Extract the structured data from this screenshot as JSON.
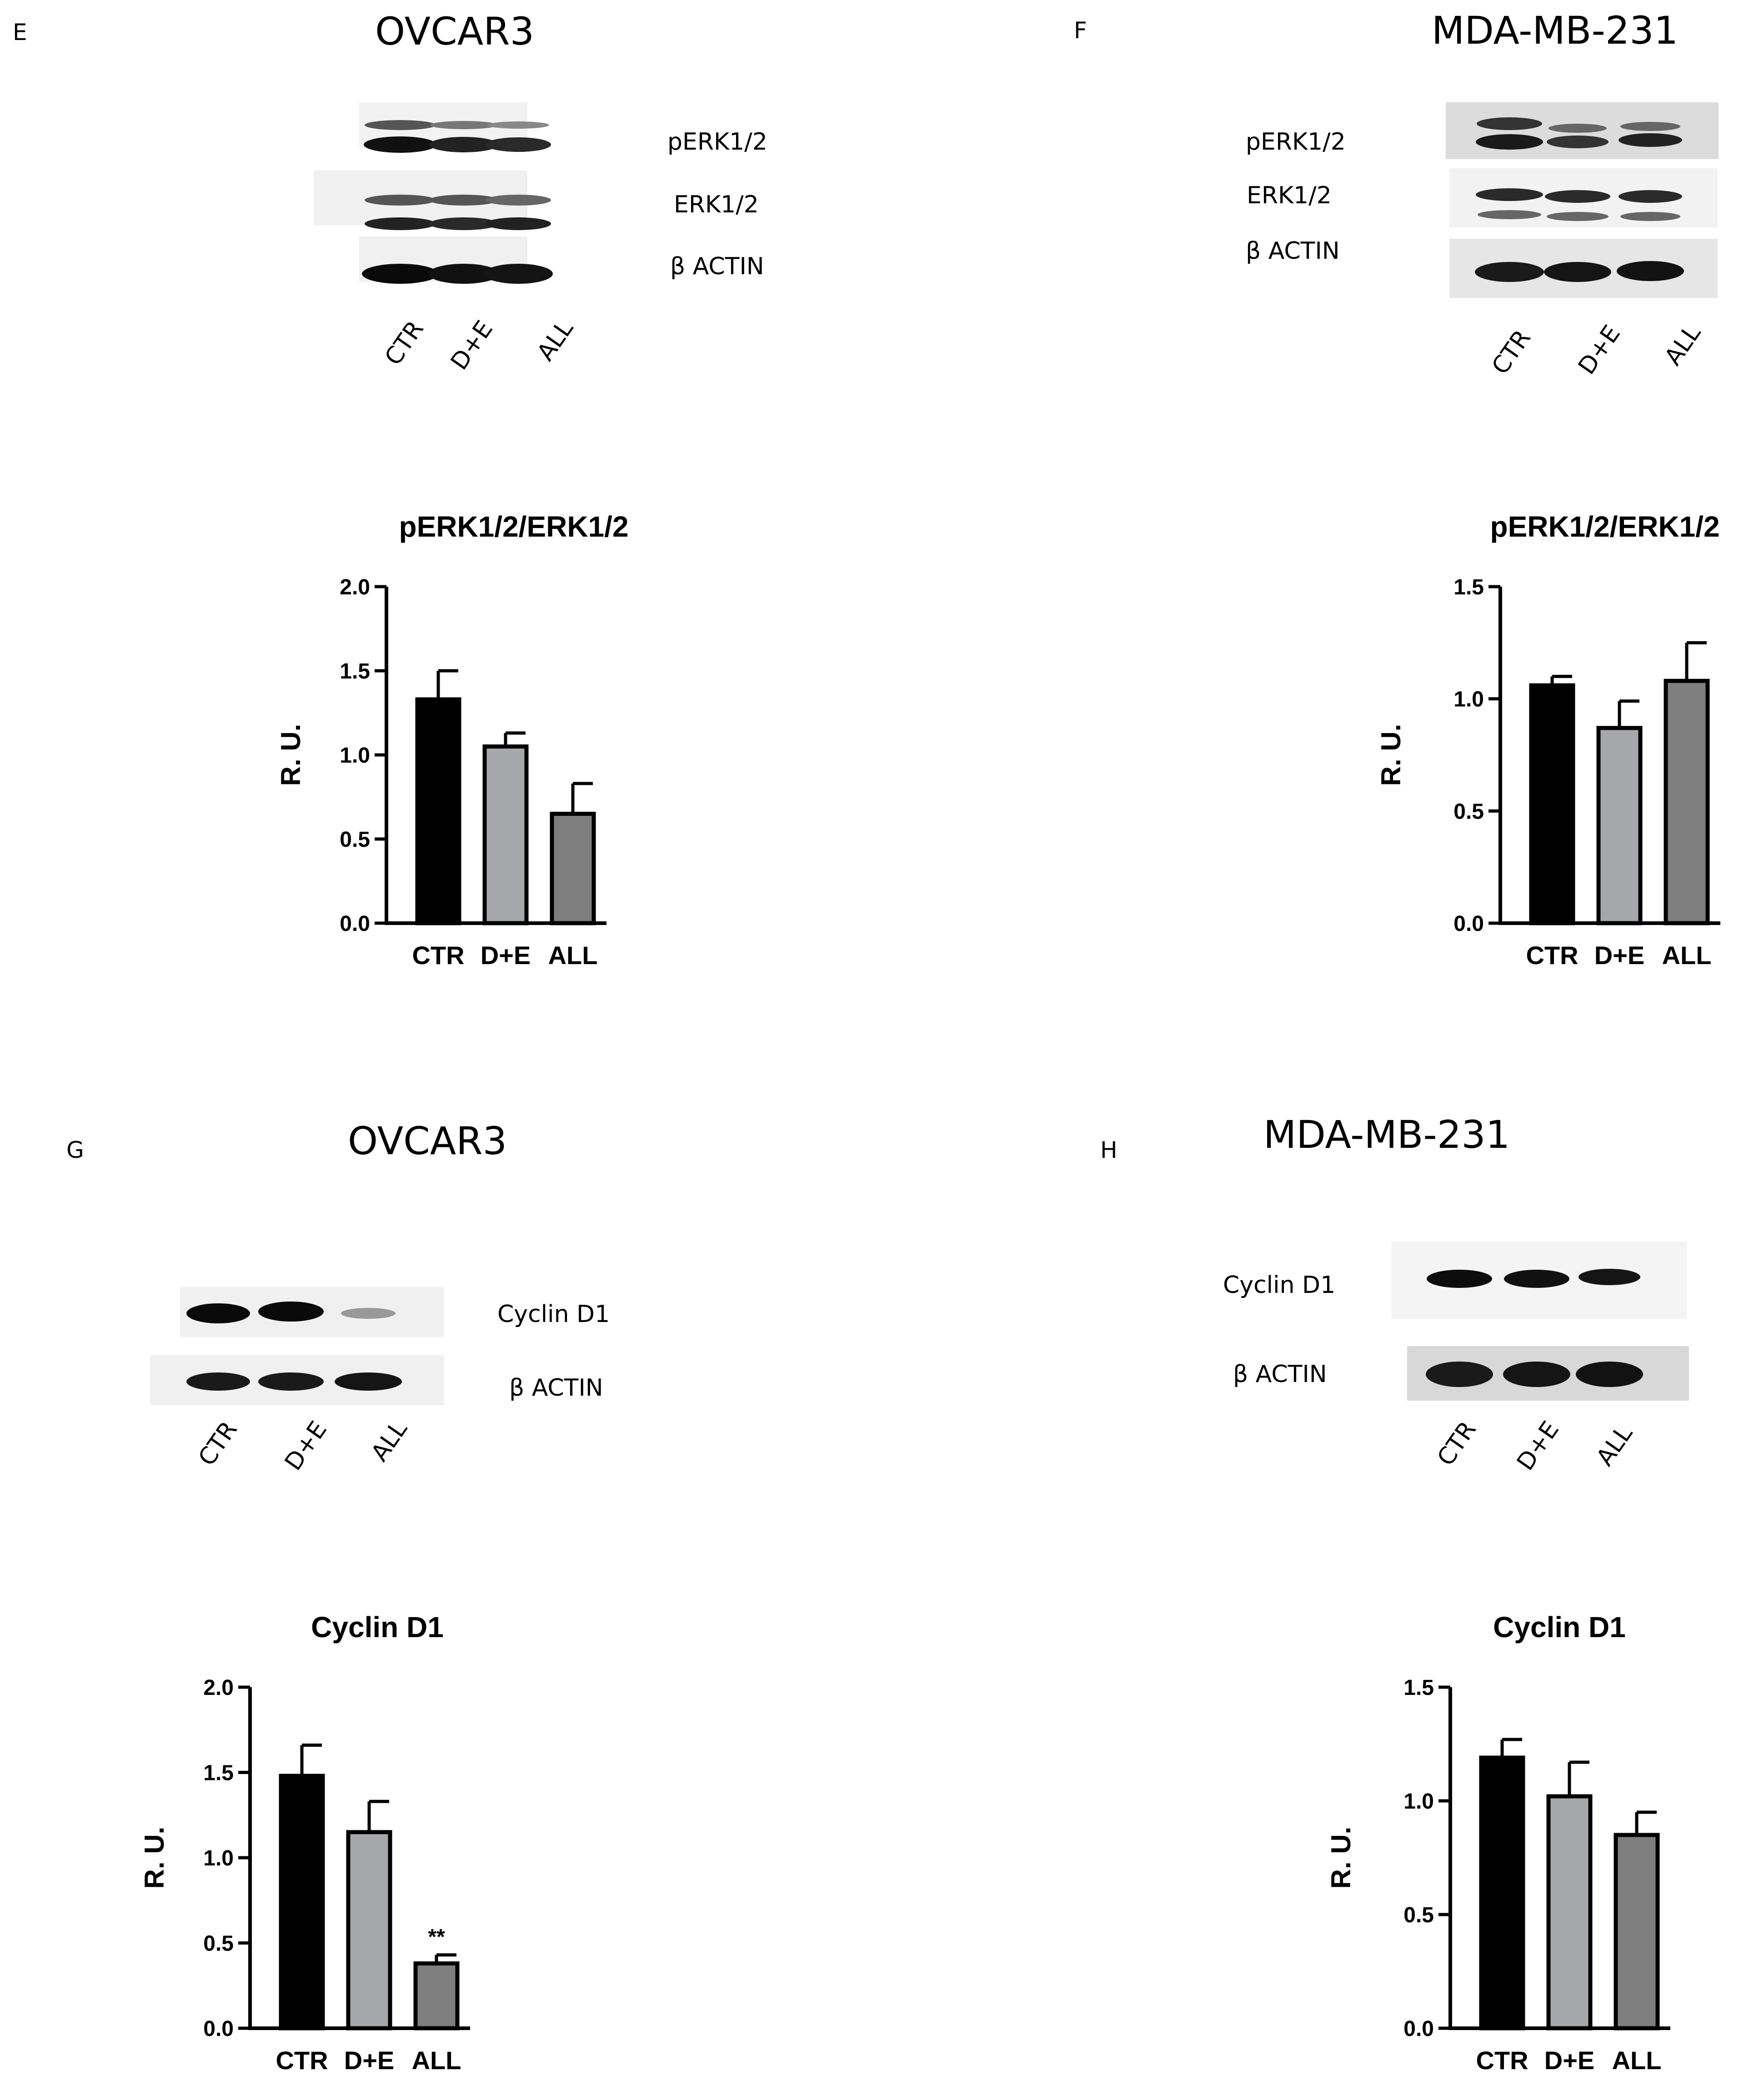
{
  "panels": {
    "E": {
      "letter": "E",
      "cell": "OVCAR3",
      "blot_labels": [
        "pERK1/2",
        "ERK1/2",
        "β ACTIN"
      ],
      "lanes": [
        "CTR",
        "D+E",
        "ALL"
      ]
    },
    "F": {
      "letter": "F",
      "cell": "MDA-MB-231",
      "blot_labels": [
        "pERK1/2",
        "ERK1/2",
        "β ACTIN"
      ],
      "lanes": [
        "CTR",
        "D+E",
        "ALL"
      ]
    },
    "G": {
      "letter": "G",
      "cell": "OVCAR3",
      "blot_labels": [
        "Cyclin D1",
        "β ACTIN"
      ],
      "lanes": [
        "CTR",
        "D+E",
        "ALL"
      ]
    },
    "H": {
      "letter": "H",
      "cell": "MDA-MB-231",
      "blot_labels": [
        "Cyclin D1",
        "β ACTIN"
      ],
      "lanes": [
        "CTR",
        "D+E",
        "ALL"
      ]
    }
  },
  "colors": {
    "CTR": "#000000",
    "D+E": "#a6a7ab",
    "ALL": "#7e7e7e"
  },
  "chart_data": [
    {
      "type": "bar",
      "title": "pERK1/2/ERK1/2",
      "ylabel": "R. U.",
      "xlabel": "",
      "categories": [
        "CTR",
        "D+E",
        "ALL"
      ],
      "values": [
        1.33,
        1.05,
        0.65
      ],
      "errors": [
        0.17,
        0.08,
        0.18
      ],
      "annotations": [
        "",
        "",
        ""
      ],
      "ylim": [
        0,
        2.0
      ],
      "yticks": [
        "0.0",
        "0.5",
        "1.0",
        "1.5",
        "2.0"
      ],
      "grid": false
    },
    {
      "type": "bar",
      "title": "pERK1/2/ERK1/2",
      "ylabel": "R. U.",
      "xlabel": "",
      "categories": [
        "CTR",
        "D+E",
        "ALL"
      ],
      "values": [
        1.06,
        0.87,
        1.08
      ],
      "errors": [
        0.04,
        0.12,
        0.17
      ],
      "annotations": [
        "",
        "",
        ""
      ],
      "ylim": [
        0,
        1.5
      ],
      "yticks": [
        "0.0",
        "0.5",
        "1.0",
        "1.5"
      ],
      "grid": false
    },
    {
      "type": "bar",
      "title": "Cyclin D1",
      "ylabel": "R. U.",
      "xlabel": "",
      "categories": [
        "CTR",
        "D+E",
        "ALL"
      ],
      "values": [
        1.48,
        1.15,
        0.38
      ],
      "errors": [
        0.18,
        0.18,
        0.05
      ],
      "annotations": [
        "",
        "",
        "**"
      ],
      "ylim": [
        0,
        2.0
      ],
      "yticks": [
        "0.0",
        "0.5",
        "1.0",
        "1.5",
        "2.0"
      ],
      "grid": false
    },
    {
      "type": "bar",
      "title": "Cyclin D1",
      "ylabel": "R. U.",
      "xlabel": "",
      "categories": [
        "CTR",
        "D+E",
        "ALL"
      ],
      "values": [
        1.19,
        1.02,
        0.85
      ],
      "errors": [
        0.08,
        0.15,
        0.1
      ],
      "annotations": [
        "",
        "",
        ""
      ],
      "ylim": [
        0,
        1.5
      ],
      "yticks": [
        "0.0",
        "0.5",
        "1.0",
        "1.5"
      ],
      "grid": false
    }
  ]
}
